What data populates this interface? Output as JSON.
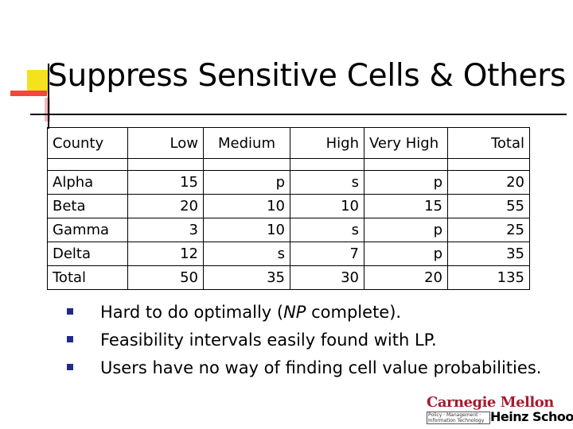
{
  "slide": {
    "title": "Suppress Sensitive Cells & Others"
  },
  "table": {
    "headers": [
      "County",
      "Low",
      "Medium",
      "High",
      "Very High",
      "Total"
    ],
    "rows": [
      [
        "Alpha",
        "15",
        "p",
        "s",
        "p",
        "20"
      ],
      [
        "Beta",
        "20",
        "10",
        "10",
        "15",
        "55"
      ],
      [
        "Gamma",
        "3",
        "10",
        "s",
        "p",
        "25"
      ],
      [
        "Delta",
        "12",
        "s",
        "7",
        "p",
        "35"
      ],
      [
        "Total",
        "50",
        "35",
        "30",
        "20",
        "135"
      ]
    ]
  },
  "bullets": [
    {
      "before": "Hard to do optimally (",
      "em": "NP",
      "after": " complete)."
    },
    {
      "before": "Feasibility intervals easily found with LP.",
      "em": "",
      "after": ""
    },
    {
      "before": "Users have no way of finding cell value probabilities.",
      "em": "",
      "after": ""
    }
  ],
  "logo": {
    "top": "Carnegie Mellon",
    "small": "Policy · Management · Information Technology",
    "bottom": "Heinz School"
  },
  "colors": {
    "bullet": "#1f2a8a",
    "logo_red": "#a51c30",
    "deco_yellow": "#f4e21c",
    "deco_red": "#f2473d",
    "deco_pink": "#f4b7bd"
  }
}
